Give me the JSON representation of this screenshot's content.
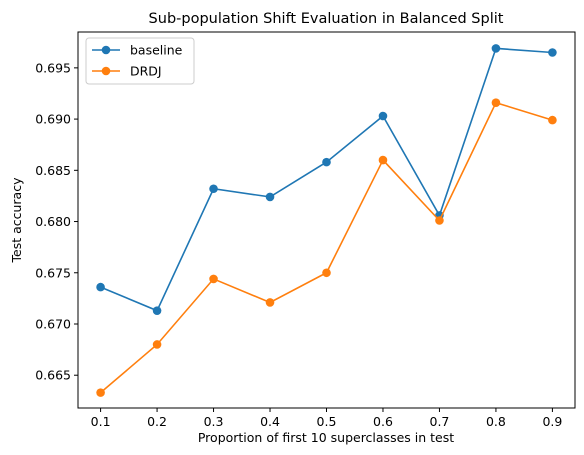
{
  "chart_data": {
    "type": "line",
    "title": "Sub-population Shift Evaluation in Balanced Split",
    "xlabel": "Proportion of first 10 superclasses in test",
    "ylabel": "Test accuracy",
    "x": [
      0.1,
      0.2,
      0.3,
      0.4,
      0.5,
      0.6,
      0.7,
      0.8,
      0.9
    ],
    "x_tick_labels": [
      "0.1",
      "0.2",
      "0.3",
      "0.4",
      "0.5",
      "0.6",
      "0.7",
      "0.8",
      "0.9"
    ],
    "y_ticks": [
      0.665,
      0.67,
      0.675,
      0.68,
      0.685,
      0.69,
      0.695
    ],
    "y_tick_labels": [
      "0.665",
      "0.670",
      "0.675",
      "0.680",
      "0.685",
      "0.690",
      "0.695"
    ],
    "xlim": [
      0.06,
      0.94
    ],
    "ylim": [
      0.6618,
      0.6985
    ],
    "grid": false,
    "legend_position": "upper-left",
    "series": [
      {
        "name": "baseline",
        "color": "#1f77b4",
        "marker": "circle",
        "values": [
          0.6736,
          0.6713,
          0.6832,
          0.6824,
          0.6858,
          0.6903,
          0.6806,
          0.6969,
          0.6965
        ]
      },
      {
        "name": "DRDJ",
        "color": "#ff7f0e",
        "marker": "circle",
        "values": [
          0.6633,
          0.668,
          0.6744,
          0.6721,
          0.675,
          0.686,
          0.6801,
          0.6916,
          0.6899
        ]
      }
    ]
  }
}
